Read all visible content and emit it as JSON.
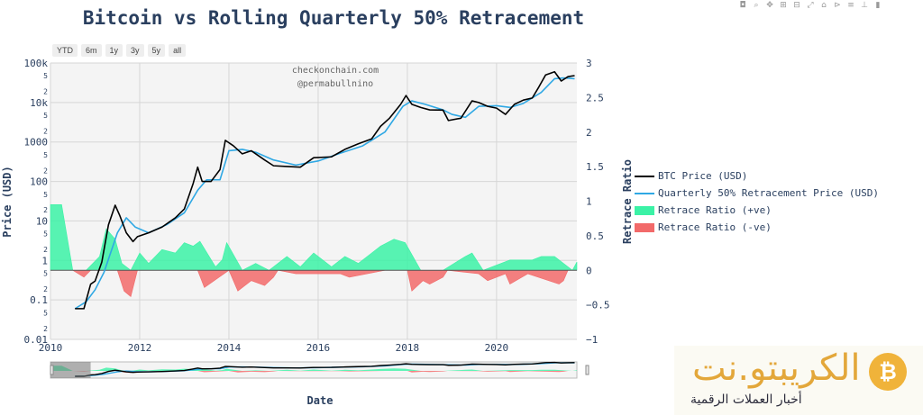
{
  "title": "Bitcoin vs Rolling Quarterly 50% Retracement",
  "range_buttons": [
    "YTD",
    "6m",
    "1y",
    "3y",
    "5y",
    "all"
  ],
  "modebar_icons": [
    "camera-icon",
    "zoom-icon",
    "pan-icon",
    "zoom-in-icon",
    "zoom-out-icon",
    "autoscale-icon",
    "reset-axes-icon",
    "hover-closest-icon",
    "hover-compare-icon",
    "toggle-spikelines-icon",
    "plotly-logo-icon"
  ],
  "watermark": {
    "name": "الكريبتو.نت",
    "tagline": "أخبار العملات الرقمية",
    "coin": "₿"
  },
  "chart_data": {
    "type": "line",
    "title": "Bitcoin vs Rolling Quarterly 50% Retracement",
    "xlabel": "Date",
    "ylabel": "Price (USD)",
    "y2label": "Retrace Ratio",
    "annotations": [
      "checkonchain.com",
      "@permabullnino"
    ],
    "x_range": [
      2010,
      2021.8
    ],
    "x_ticks": [
      "2010",
      "2012",
      "2014",
      "2016",
      "2018",
      "2020"
    ],
    "y_scale": "log",
    "y_range_log": [
      -2,
      5
    ],
    "y_ticks": [
      "0.01",
      "2",
      "5",
      "0.1",
      "2",
      "5",
      "1",
      "2",
      "5",
      "10",
      "2",
      "5",
      "100",
      "2",
      "5",
      "1000",
      "2",
      "5",
      "10k",
      "2",
      "5",
      "100k"
    ],
    "y2_range": [
      -1,
      3
    ],
    "y2_ticks": [
      "−1",
      "−0.5",
      "0",
      "0.5",
      "1",
      "1.5",
      "2",
      "2.5",
      "3"
    ],
    "grid": true,
    "legend_position": "right",
    "colors": {
      "btc": "#000000",
      "retrace": "#2fa8e4",
      "pos": "#3bf2a6",
      "neg": "#f26a6a",
      "plot_bg": "#f4f4f4",
      "grid": "#d6d6d6"
    },
    "series": [
      {
        "name": "BTC Price (USD)",
        "x": [
          2010.55,
          2010.75,
          2010.9,
          2011.0,
          2011.15,
          2011.3,
          2011.45,
          2011.55,
          2011.7,
          2011.85,
          2011.95,
          2012.2,
          2012.5,
          2012.8,
          2013.0,
          2013.2,
          2013.3,
          2013.4,
          2013.6,
          2013.8,
          2013.92,
          2014.1,
          2014.3,
          2014.5,
          2014.8,
          2015.0,
          2015.3,
          2015.6,
          2015.9,
          2016.3,
          2016.6,
          2016.9,
          2017.2,
          2017.4,
          2017.6,
          2017.85,
          2017.97,
          2018.1,
          2018.3,
          2018.5,
          2018.8,
          2018.92,
          2019.2,
          2019.45,
          2019.6,
          2019.8,
          2020.0,
          2020.2,
          2020.4,
          2020.6,
          2020.8,
          2020.95,
          2021.1,
          2021.3,
          2021.45,
          2021.6,
          2021.75
        ],
        "y": [
          0.06,
          0.06,
          0.25,
          0.3,
          0.9,
          8,
          25,
          14,
          5,
          3,
          4,
          5,
          7,
          12,
          20,
          90,
          230,
          100,
          100,
          200,
          1100,
          800,
          500,
          600,
          350,
          250,
          240,
          230,
          400,
          420,
          650,
          900,
          1200,
          2500,
          4000,
          9000,
          15000,
          9000,
          7500,
          6500,
          6400,
          3500,
          4000,
          11000,
          10000,
          8000,
          7200,
          5000,
          9000,
          11500,
          13000,
          25000,
          50000,
          60000,
          35000,
          45000,
          48000
        ]
      },
      {
        "name": "Quarterly 50% Retracement Price (USD)",
        "x": [
          2010.55,
          2010.8,
          2011.0,
          2011.2,
          2011.5,
          2011.7,
          2011.9,
          2012.2,
          2012.6,
          2013.0,
          2013.3,
          2013.5,
          2013.8,
          2014.0,
          2014.3,
          2014.6,
          2015.0,
          2015.5,
          2016.0,
          2016.5,
          2017.0,
          2017.5,
          2017.9,
          2018.1,
          2018.4,
          2018.8,
          2019.0,
          2019.3,
          2019.6,
          2020.0,
          2020.3,
          2020.6,
          2021.0,
          2021.3,
          2021.5,
          2021.75
        ],
        "y": [
          0.06,
          0.09,
          0.18,
          0.5,
          5,
          12,
          7,
          5,
          8,
          16,
          60,
          110,
          110,
          600,
          650,
          550,
          350,
          260,
          330,
          520,
          800,
          1800,
          8000,
          11000,
          9000,
          6500,
          5000,
          4200,
          8000,
          8300,
          7500,
          9500,
          18000,
          40000,
          42000,
          40000
        ]
      },
      {
        "name": "Retrace Ratio (+ve)",
        "x": [
          2010.0,
          2010.25,
          2010.5,
          2010.8,
          2011.1,
          2011.25,
          2011.45,
          2011.6,
          2011.8,
          2012.0,
          2012.2,
          2012.5,
          2012.8,
          2013.0,
          2013.2,
          2013.35,
          2013.7,
          2013.85,
          2013.95,
          2014.3,
          2014.6,
          2014.9,
          2015.3,
          2015.6,
          2015.9,
          2016.3,
          2016.6,
          2016.9,
          2017.2,
          2017.4,
          2017.7,
          2017.95,
          2018.3,
          2018.6,
          2018.8,
          2019.3,
          2019.45,
          2019.7,
          2019.9,
          2020.3,
          2020.6,
          2020.8,
          2021.0,
          2021.15,
          2021.3,
          2021.7,
          2021.8
        ],
        "y": [
          0.95,
          0.95,
          0.0,
          0.0,
          0.2,
          0.6,
          0.45,
          0.1,
          0.0,
          0.25,
          0.1,
          0.3,
          0.25,
          0.4,
          0.35,
          0.42,
          0.05,
          0.15,
          0.4,
          0.0,
          0.1,
          0.0,
          0.2,
          0.05,
          0.25,
          0.05,
          0.2,
          0.1,
          0.25,
          0.35,
          0.45,
          0.4,
          0.0,
          0.0,
          0.0,
          0.2,
          0.25,
          0.0,
          0.05,
          0.15,
          0.15,
          0.15,
          0.2,
          0.2,
          0.2,
          0.0,
          0.12
        ]
      },
      {
        "name": "Retrace Ratio (-ve)",
        "x": [
          2010.3,
          2010.5,
          2010.75,
          2010.9,
          2011.5,
          2011.65,
          2011.8,
          2011.95,
          2013.3,
          2013.45,
          2014.0,
          2014.2,
          2014.5,
          2014.8,
          2015.0,
          2015.1,
          2015.5,
          2016.5,
          2016.7,
          2017.5,
          2018.0,
          2018.1,
          2018.35,
          2018.5,
          2018.8,
          2018.9,
          2019.6,
          2019.8,
          2020.2,
          2020.3,
          2020.7,
          2021.4,
          2021.5,
          2021.6
        ],
        "y": [
          0.0,
          0.0,
          -0.1,
          0.0,
          0.0,
          -0.3,
          -0.38,
          0.0,
          0.0,
          -0.25,
          0.0,
          -0.3,
          -0.15,
          -0.22,
          -0.1,
          0.0,
          -0.05,
          -0.05,
          -0.1,
          0.0,
          0.0,
          -0.3,
          -0.15,
          -0.2,
          -0.1,
          0.0,
          -0.05,
          -0.15,
          -0.05,
          -0.2,
          -0.05,
          -0.2,
          -0.15,
          0.0
        ]
      }
    ]
  }
}
